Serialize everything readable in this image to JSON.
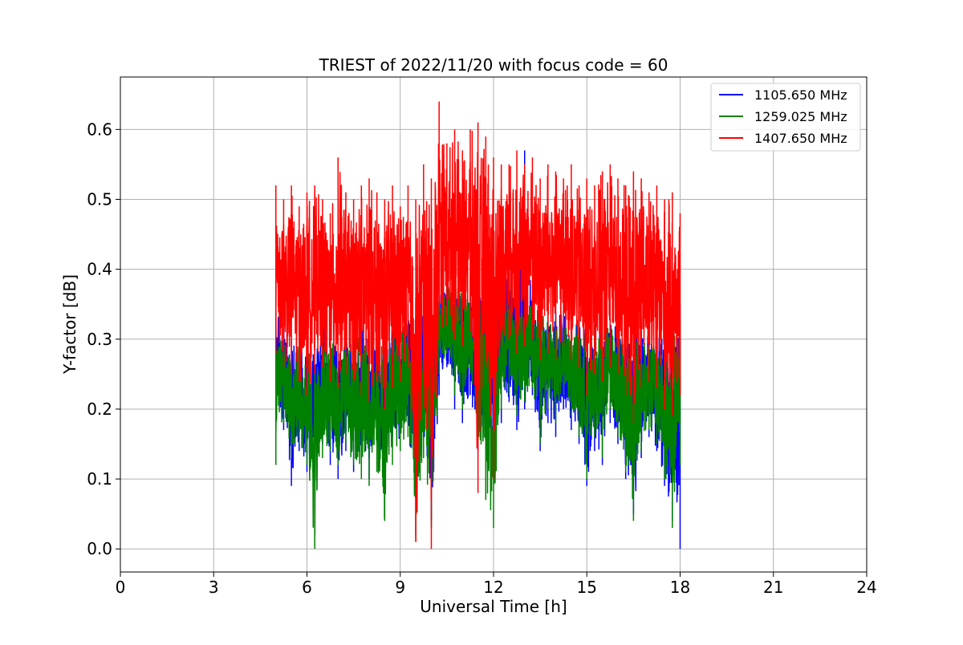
{
  "chart_data": {
    "type": "line",
    "title": "TRIEST of 2022/11/20 with focus code = 60",
    "xlabel": "Universal Time [h]",
    "ylabel": "Y-factor [dB]",
    "xlim": [
      0,
      24
    ],
    "ylim": [
      -0.033,
      0.675
    ],
    "xticks": [
      0,
      3,
      6,
      9,
      12,
      15,
      18,
      21,
      24
    ],
    "xtick_labels": [
      "0",
      "3",
      "6",
      "9",
      "12",
      "15",
      "18",
      "21",
      "24"
    ],
    "yticks": [
      0.0,
      0.1,
      0.2,
      0.3,
      0.4,
      0.5,
      0.6
    ],
    "ytick_labels": [
      "0.0",
      "0.1",
      "0.2",
      "0.3",
      "0.4",
      "0.5",
      "0.6"
    ],
    "grid": true,
    "legend_position": "upper right",
    "series": [
      {
        "name": "1105.650 MHz",
        "color": "#0000ff",
        "x": [
          5.0,
          5.25,
          5.5,
          5.75,
          6.0,
          6.25,
          6.5,
          6.75,
          7.0,
          7.25,
          7.5,
          7.75,
          8.0,
          8.25,
          8.5,
          8.75,
          9.0,
          9.25,
          9.5,
          9.75,
          10.0,
          10.25,
          10.5,
          10.75,
          11.0,
          11.25,
          11.5,
          11.75,
          12.0,
          12.25,
          12.5,
          12.75,
          13.0,
          13.25,
          13.5,
          13.75,
          14.0,
          14.25,
          14.5,
          14.75,
          15.0,
          15.25,
          15.5,
          15.75,
          16.0,
          16.25,
          16.5,
          16.75,
          17.0,
          17.25,
          17.5,
          17.75,
          18.0
        ],
        "y_min": [
          0.19,
          0.17,
          0.09,
          0.14,
          0.11,
          0.13,
          0.15,
          0.12,
          0.1,
          0.14,
          0.11,
          0.13,
          0.1,
          0.15,
          0.08,
          0.16,
          0.14,
          0.18,
          0.02,
          0.16,
          0.04,
          0.22,
          0.26,
          0.2,
          0.18,
          0.22,
          0.14,
          0.16,
          0.1,
          0.18,
          0.21,
          0.17,
          0.2,
          0.22,
          0.14,
          0.18,
          0.16,
          0.2,
          0.17,
          0.15,
          0.09,
          0.14,
          0.12,
          0.18,
          0.15,
          0.1,
          0.05,
          0.13,
          0.16,
          0.14,
          0.09,
          0.04,
          0.0
        ],
        "y_max": [
          0.36,
          0.33,
          0.3,
          0.32,
          0.31,
          0.3,
          0.33,
          0.32,
          0.3,
          0.31,
          0.32,
          0.33,
          0.31,
          0.3,
          0.32,
          0.34,
          0.33,
          0.35,
          0.36,
          0.38,
          0.37,
          0.38,
          0.39,
          0.4,
          0.4,
          0.39,
          0.41,
          0.38,
          0.4,
          0.39,
          0.42,
          0.38,
          0.57,
          0.36,
          0.37,
          0.35,
          0.34,
          0.35,
          0.33,
          0.34,
          0.32,
          0.33,
          0.35,
          0.34,
          0.33,
          0.32,
          0.34,
          0.33,
          0.32,
          0.33,
          0.31,
          0.32,
          0.35
        ]
      },
      {
        "name": "1259.025 MHz",
        "color": "#008000",
        "x": [
          5.0,
          5.25,
          5.5,
          5.75,
          6.0,
          6.25,
          6.5,
          6.75,
          7.0,
          7.25,
          7.5,
          7.75,
          8.0,
          8.25,
          8.5,
          8.75,
          9.0,
          9.25,
          9.5,
          9.75,
          10.0,
          10.25,
          10.5,
          10.75,
          11.0,
          11.25,
          11.5,
          11.75,
          12.0,
          12.25,
          12.5,
          12.75,
          13.0,
          13.25,
          13.5,
          13.75,
          14.0,
          14.25,
          14.5,
          14.75,
          15.0,
          15.25,
          15.5,
          15.75,
          16.0,
          16.25,
          16.5,
          16.75,
          17.0,
          17.25,
          17.5,
          17.75,
          18.0
        ],
        "y_min": [
          0.12,
          0.18,
          0.13,
          0.15,
          0.12,
          0.0,
          0.13,
          0.14,
          0.12,
          0.15,
          0.12,
          0.1,
          0.09,
          0.11,
          0.04,
          0.12,
          0.14,
          0.16,
          0.01,
          0.13,
          0.03,
          0.25,
          0.28,
          0.22,
          0.2,
          0.25,
          0.15,
          0.07,
          0.03,
          0.2,
          0.22,
          0.19,
          0.21,
          0.23,
          0.15,
          0.2,
          0.18,
          0.22,
          0.19,
          0.16,
          0.1,
          0.16,
          0.13,
          0.2,
          0.16,
          0.11,
          0.04,
          0.14,
          0.17,
          0.15,
          0.1,
          0.03,
          0.12
        ],
        "y_max": [
          0.32,
          0.3,
          0.28,
          0.3,
          0.29,
          0.28,
          0.31,
          0.3,
          0.29,
          0.3,
          0.31,
          0.32,
          0.3,
          0.29,
          0.31,
          0.33,
          0.32,
          0.34,
          0.35,
          0.37,
          0.36,
          0.37,
          0.38,
          0.37,
          0.39,
          0.38,
          0.38,
          0.37,
          0.38,
          0.37,
          0.38,
          0.36,
          0.37,
          0.35,
          0.36,
          0.34,
          0.33,
          0.34,
          0.32,
          0.33,
          0.31,
          0.32,
          0.34,
          0.33,
          0.32,
          0.31,
          0.33,
          0.32,
          0.31,
          0.32,
          0.3,
          0.31,
          0.33
        ]
      },
      {
        "name": "1407.650 MHz",
        "color": "#ff0000",
        "x": [
          5.0,
          5.25,
          5.5,
          5.75,
          6.0,
          6.25,
          6.5,
          6.75,
          7.0,
          7.25,
          7.5,
          7.75,
          8.0,
          8.25,
          8.5,
          8.75,
          9.0,
          9.25,
          9.5,
          9.75,
          10.0,
          10.25,
          10.5,
          10.75,
          11.0,
          11.25,
          11.5,
          11.75,
          12.0,
          12.25,
          12.5,
          12.75,
          13.0,
          13.25,
          13.5,
          13.75,
          14.0,
          14.25,
          14.5,
          14.75,
          15.0,
          15.25,
          15.5,
          15.75,
          16.0,
          16.25,
          16.5,
          16.75,
          17.0,
          17.25,
          17.5,
          17.75,
          18.0
        ],
        "y_min": [
          0.28,
          0.26,
          0.25,
          0.24,
          0.22,
          0.25,
          0.26,
          0.24,
          0.23,
          0.25,
          0.24,
          0.22,
          0.21,
          0.24,
          0.2,
          0.23,
          0.24,
          0.26,
          0.01,
          0.2,
          0.0,
          0.3,
          0.32,
          0.3,
          0.29,
          0.31,
          0.08,
          0.26,
          0.1,
          0.29,
          0.3,
          0.28,
          0.29,
          0.3,
          0.27,
          0.28,
          0.27,
          0.29,
          0.27,
          0.26,
          0.22,
          0.25,
          0.24,
          0.26,
          0.25,
          0.22,
          0.18,
          0.23,
          0.24,
          0.23,
          0.2,
          0.19,
          0.22
        ],
        "y_max": [
          0.52,
          0.5,
          0.52,
          0.49,
          0.51,
          0.52,
          0.5,
          0.48,
          0.56,
          0.51,
          0.5,
          0.52,
          0.53,
          0.51,
          0.5,
          0.52,
          0.49,
          0.52,
          0.5,
          0.55,
          0.53,
          0.64,
          0.58,
          0.6,
          0.57,
          0.6,
          0.61,
          0.59,
          0.56,
          0.55,
          0.55,
          0.57,
          0.55,
          0.56,
          0.53,
          0.55,
          0.54,
          0.53,
          0.55,
          0.52,
          0.53,
          0.52,
          0.54,
          0.55,
          0.53,
          0.52,
          0.54,
          0.53,
          0.51,
          0.52,
          0.5,
          0.51,
          0.48
        ]
      }
    ]
  }
}
